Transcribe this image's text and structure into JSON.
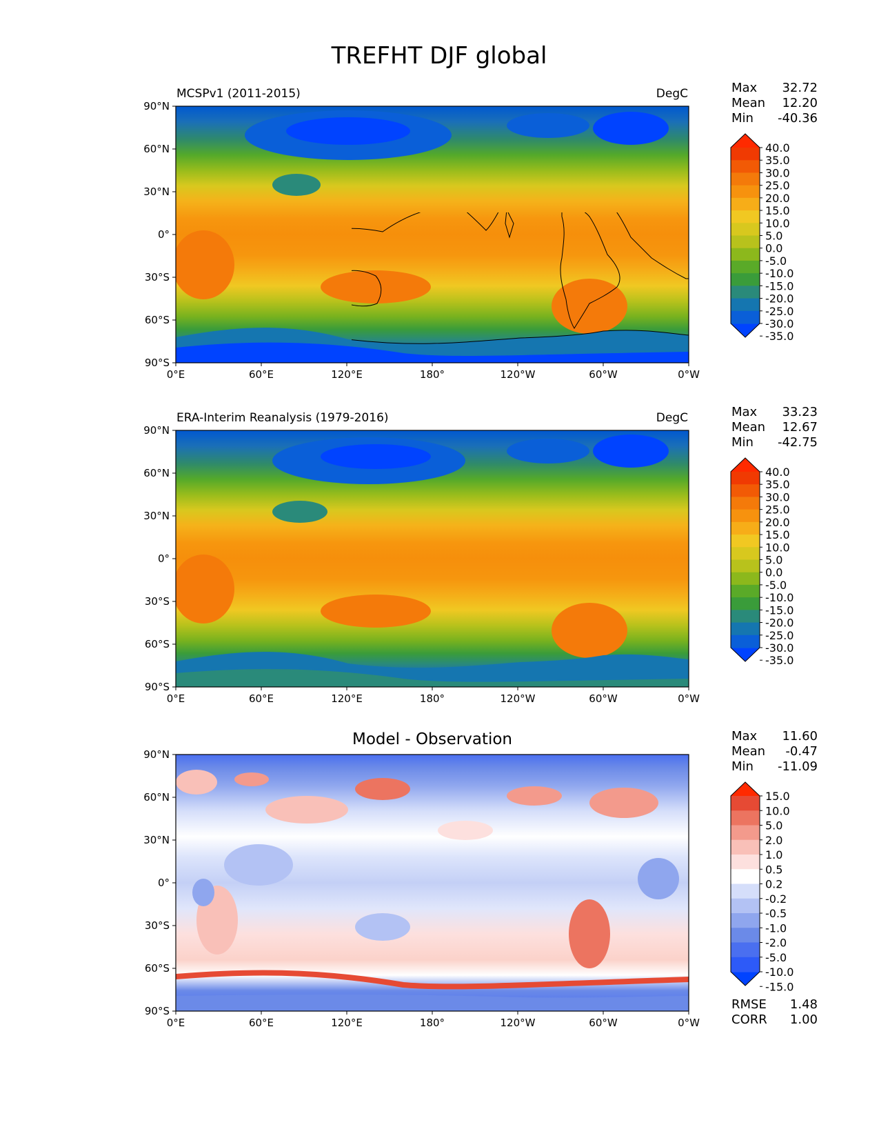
{
  "title": "TREFHT DJF global",
  "x_ticks": [
    "0°E",
    "60°E",
    "120°E",
    "180°",
    "120°W",
    "60°W",
    "0°W"
  ],
  "y_ticks": [
    "90°N",
    "60°N",
    "30°N",
    "0°",
    "30°S",
    "60°S",
    "90°S"
  ],
  "stat_labels": {
    "max": "Max",
    "mean": "Mean",
    "min": "Min",
    "rmse": "RMSE",
    "corr": "CORR"
  },
  "colors": {
    "abs_levels": [
      "#0043ff",
      "#0a5fd8",
      "#1576b0",
      "#2a8a7a",
      "#3a9c3a",
      "#5aaa28",
      "#8cb81c",
      "#b8c21c",
      "#d8c81e",
      "#f1c822",
      "#f7ad18",
      "#f7920e",
      "#f47a0a",
      "#f25a05",
      "#f03a02",
      "#ff2a00"
    ],
    "diff_levels": [
      "#0043ff",
      "#2d5af8",
      "#4a6ff0",
      "#6b8ae8",
      "#8fa6ee",
      "#b3c2f4",
      "#d5defa",
      "#ffffff",
      "#fde0de",
      "#f9c0b8",
      "#f39a8c",
      "#ec7460",
      "#e64a34",
      "#ff2a00"
    ]
  },
  "panels": [
    {
      "id": "model",
      "subtitle_left": "MCSPv1 (2011-2015)",
      "subtitle_center": "",
      "subtitle_right": "DegC",
      "max": "32.72",
      "mean": "12.20",
      "min": "-40.36",
      "colorbar_labels": [
        "40.0",
        "35.0",
        "30.0",
        "25.0",
        "20.0",
        "15.0",
        "10.0",
        "5.0",
        "0.0",
        "-5.0",
        "-10.0",
        "-15.0",
        "-20.0",
        "-25.0",
        "-30.0",
        "-35.0"
      ]
    },
    {
      "id": "obs",
      "subtitle_left": "ERA-Interim Reanalysis (1979-2016)",
      "subtitle_center": "",
      "subtitle_right": "DegC",
      "max": "33.23",
      "mean": "12.67",
      "min": "-42.75",
      "colorbar_labels": [
        "40.0",
        "35.0",
        "30.0",
        "25.0",
        "20.0",
        "15.0",
        "10.0",
        "5.0",
        "0.0",
        "-5.0",
        "-10.0",
        "-15.0",
        "-20.0",
        "-25.0",
        "-30.0",
        "-35.0"
      ]
    },
    {
      "id": "diff",
      "subtitle_left": "",
      "subtitle_center": "Model - Observation",
      "subtitle_right": "",
      "max": "11.60",
      "mean": "-0.47",
      "min": "-11.09",
      "rmse": "1.48",
      "corr": "1.00",
      "colorbar_labels": [
        "15.0",
        "10.0",
        "5.0",
        "2.0",
        "1.0",
        "0.5",
        "0.2",
        "-0.2",
        "-0.5",
        "-1.0",
        "-2.0",
        "-5.0",
        "-10.0",
        "-15.0"
      ]
    }
  ]
}
